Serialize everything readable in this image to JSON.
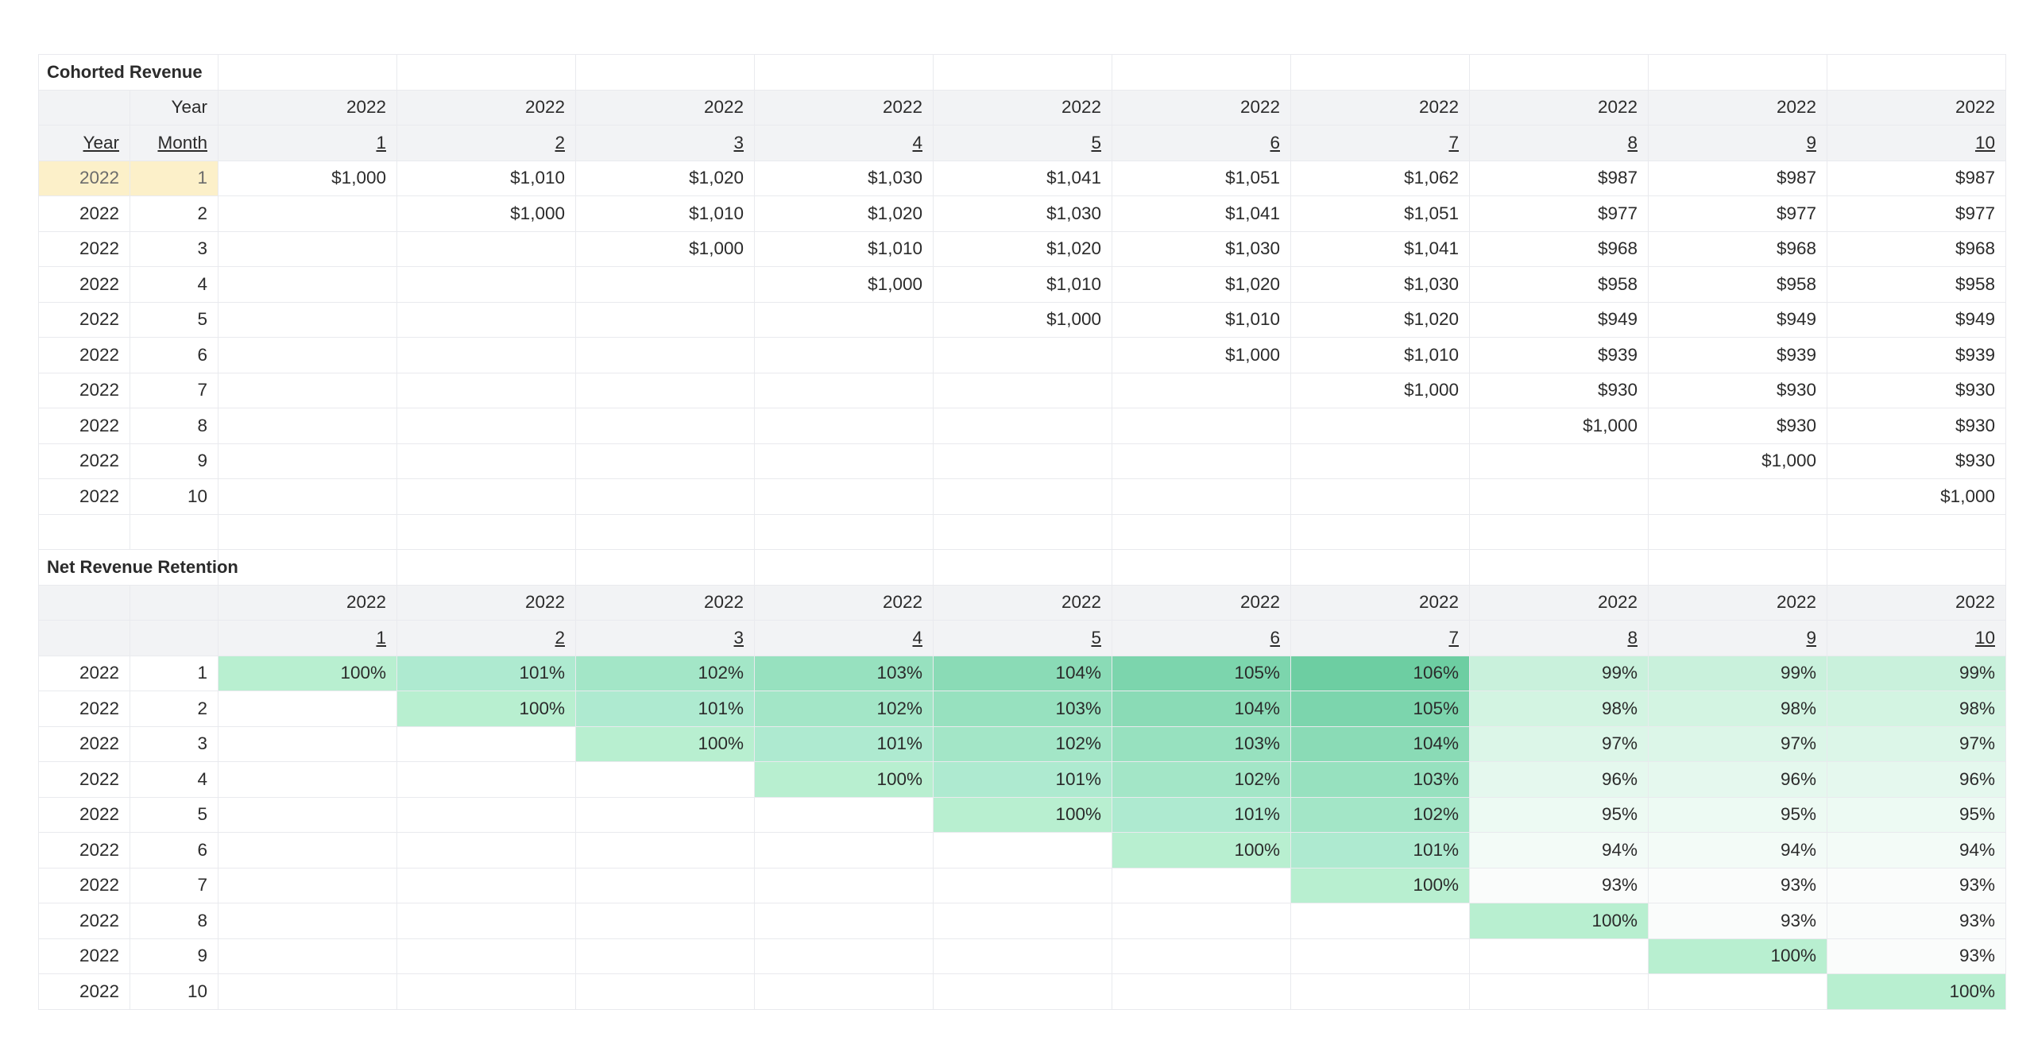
{
  "cohorted_revenue": {
    "title": "Cohorted Revenue",
    "corner_year_label": "Year",
    "row_year_header": "Year",
    "row_month_header": "Month",
    "column_years": [
      "2022",
      "2022",
      "2022",
      "2022",
      "2022",
      "2022",
      "2022",
      "2022",
      "2022",
      "2022"
    ],
    "column_months": [
      "1",
      "2",
      "3",
      "4",
      "5",
      "6",
      "7",
      "8",
      "9",
      "10"
    ],
    "rows": [
      {
        "year": "2022",
        "month": "1",
        "values": [
          "$1,000",
          "$1,010",
          "$1,020",
          "$1,030",
          "$1,041",
          "$1,051",
          "$1,062",
          "$987",
          "$987",
          "$987"
        ]
      },
      {
        "year": "2022",
        "month": "2",
        "values": [
          "",
          "$1,000",
          "$1,010",
          "$1,020",
          "$1,030",
          "$1,041",
          "$1,051",
          "$977",
          "$977",
          "$977"
        ]
      },
      {
        "year": "2022",
        "month": "3",
        "values": [
          "",
          "",
          "$1,000",
          "$1,010",
          "$1,020",
          "$1,030",
          "$1,041",
          "$968",
          "$968",
          "$968"
        ]
      },
      {
        "year": "2022",
        "month": "4",
        "values": [
          "",
          "",
          "",
          "$1,000",
          "$1,010",
          "$1,020",
          "$1,030",
          "$958",
          "$958",
          "$958"
        ]
      },
      {
        "year": "2022",
        "month": "5",
        "values": [
          "",
          "",
          "",
          "",
          "$1,000",
          "$1,010",
          "$1,020",
          "$949",
          "$949",
          "$949"
        ]
      },
      {
        "year": "2022",
        "month": "6",
        "values": [
          "",
          "",
          "",
          "",
          "",
          "$1,000",
          "$1,010",
          "$939",
          "$939",
          "$939"
        ]
      },
      {
        "year": "2022",
        "month": "7",
        "values": [
          "",
          "",
          "",
          "",
          "",
          "",
          "$1,000",
          "$930",
          "$930",
          "$930"
        ]
      },
      {
        "year": "2022",
        "month": "8",
        "values": [
          "",
          "",
          "",
          "",
          "",
          "",
          "",
          "$1,000",
          "$930",
          "$930"
        ]
      },
      {
        "year": "2022",
        "month": "9",
        "values": [
          "",
          "",
          "",
          "",
          "",
          "",
          "",
          "",
          "$1,000",
          "$930"
        ]
      },
      {
        "year": "2022",
        "month": "10",
        "values": [
          "",
          "",
          "",
          "",
          "",
          "",
          "",
          "",
          "",
          "$1,000"
        ]
      }
    ]
  },
  "net_revenue_retention": {
    "title": "Net Revenue Retention",
    "column_years": [
      "2022",
      "2022",
      "2022",
      "2022",
      "2022",
      "2022",
      "2022",
      "2022",
      "2022",
      "2022"
    ],
    "column_months": [
      "1",
      "2",
      "3",
      "4",
      "5",
      "6",
      "7",
      "8",
      "9",
      "10"
    ],
    "rows": [
      {
        "year": "2022",
        "month": "1",
        "values": [
          "100%",
          "101%",
          "102%",
          "103%",
          "104%",
          "105%",
          "106%",
          "99%",
          "99%",
          "99%"
        ]
      },
      {
        "year": "2022",
        "month": "2",
        "values": [
          "",
          "100%",
          "101%",
          "102%",
          "103%",
          "104%",
          "105%",
          "98%",
          "98%",
          "98%"
        ]
      },
      {
        "year": "2022",
        "month": "3",
        "values": [
          "",
          "",
          "100%",
          "101%",
          "102%",
          "103%",
          "104%",
          "97%",
          "97%",
          "97%"
        ]
      },
      {
        "year": "2022",
        "month": "4",
        "values": [
          "",
          "",
          "",
          "100%",
          "101%",
          "102%",
          "103%",
          "96%",
          "96%",
          "96%"
        ]
      },
      {
        "year": "2022",
        "month": "5",
        "values": [
          "",
          "",
          "",
          "",
          "100%",
          "101%",
          "102%",
          "95%",
          "95%",
          "95%"
        ]
      },
      {
        "year": "2022",
        "month": "6",
        "values": [
          "",
          "",
          "",
          "",
          "",
          "100%",
          "101%",
          "94%",
          "94%",
          "94%"
        ]
      },
      {
        "year": "2022",
        "month": "7",
        "values": [
          "",
          "",
          "",
          "",
          "",
          "",
          "100%",
          "93%",
          "93%",
          "93%"
        ]
      },
      {
        "year": "2022",
        "month": "8",
        "values": [
          "",
          "",
          "",
          "",
          "",
          "",
          "",
          "100%",
          "93%",
          "93%"
        ]
      },
      {
        "year": "2022",
        "month": "9",
        "values": [
          "",
          "",
          "",
          "",
          "",
          "",
          "",
          "",
          "100%",
          "93%"
        ]
      },
      {
        "year": "2022",
        "month": "10",
        "values": [
          "",
          "",
          "",
          "",
          "",
          "",
          "",
          "",
          "",
          "100%"
        ]
      }
    ]
  },
  "colors": {
    "header_gray": "#f2f3f5",
    "selected_cell": "#fcf0c9",
    "heat_100": "#b8efd0",
    "heat_101": "#aeead0",
    "heat_102": "#a3e6c7",
    "heat_103": "#97e1bf",
    "heat_104": "#8adbb6",
    "heat_105": "#7cd5ad",
    "heat_106": "#6dcea2",
    "heat_99": "#c9f1dc",
    "heat_98": "#d3f4e2",
    "heat_97": "#dcf6e8",
    "heat_96": "#e5f8ee",
    "heat_95": "#edfaf3",
    "heat_94": "#f3fbf7",
    "heat_93": "#fafcfb"
  }
}
